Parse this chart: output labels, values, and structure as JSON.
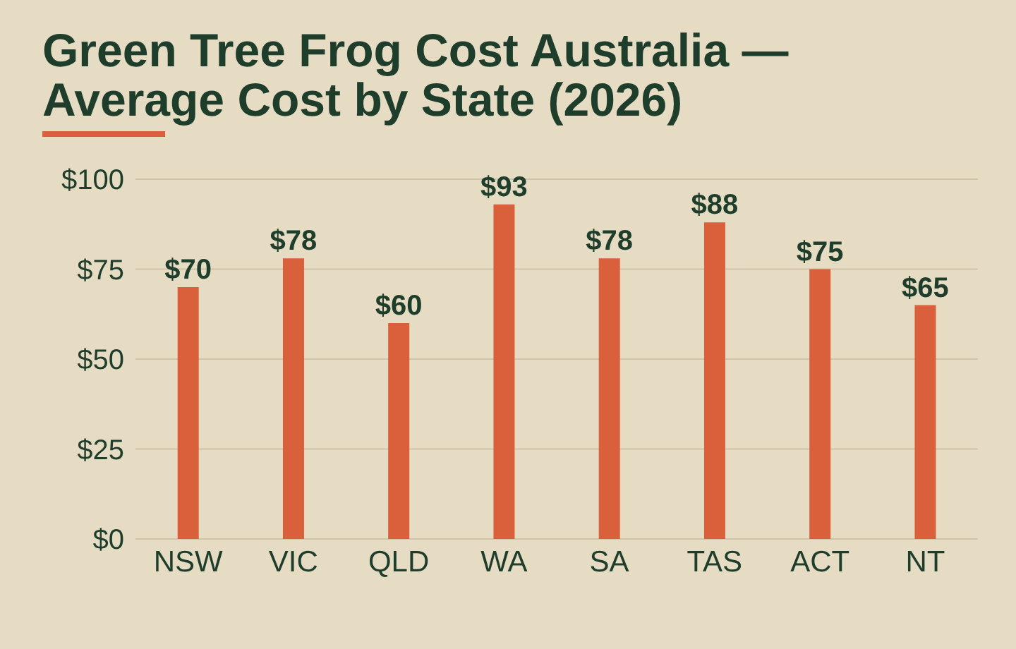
{
  "chart_data": {
    "type": "bar",
    "title": "Green Tree Frog Cost Australia — Average Cost by State (2026)",
    "categories": [
      "NSW",
      "VIC",
      "QLD",
      "WA",
      "SA",
      "TAS",
      "ACT",
      "NT"
    ],
    "values": [
      70,
      78,
      60,
      93,
      78,
      88,
      75,
      65
    ],
    "value_labels": [
      "$70",
      "$78",
      "$60",
      "$93",
      "$78",
      "$88",
      "$75",
      "$65"
    ],
    "color": "#d9603b",
    "ylim": [
      0,
      100
    ],
    "yticks": [
      {
        "value": 0,
        "label": "$0"
      },
      {
        "value": 25,
        "label": "$25"
      },
      {
        "value": 50,
        "label": "$50"
      },
      {
        "value": 75,
        "label": "$75"
      },
      {
        "value": 100,
        "label": "$100"
      }
    ],
    "grid": "y"
  }
}
